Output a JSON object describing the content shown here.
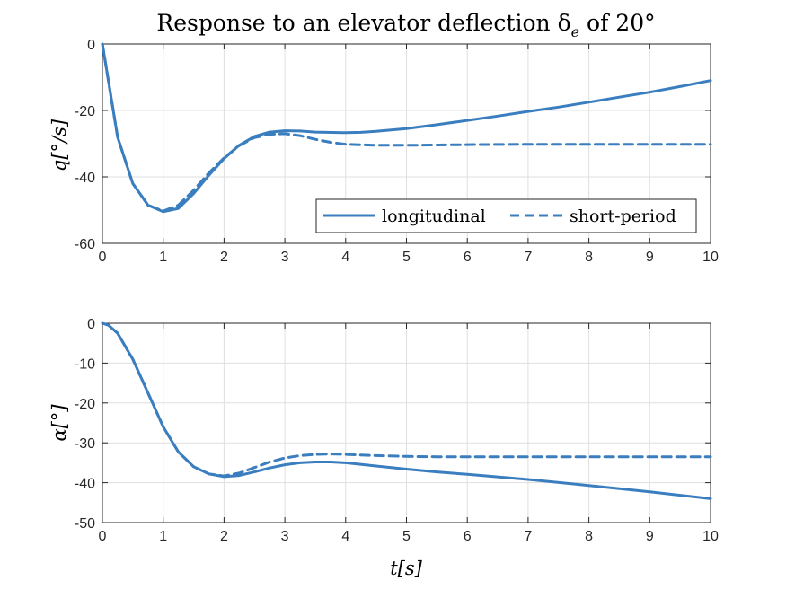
{
  "figure": {
    "title": "Response to an elevator deflection δ",
    "title_sub": "e",
    "title_tail": " of 20°"
  },
  "chart_data": [
    {
      "type": "line",
      "ylabel": "q[°/s]",
      "xlabel": "",
      "xlim": [
        0,
        10
      ],
      "ylim": [
        -60,
        0
      ],
      "xticks": [
        0,
        1,
        2,
        3,
        4,
        5,
        6,
        7,
        8,
        9,
        10
      ],
      "yticks": [
        0,
        -20,
        -40,
        -60
      ],
      "ytick_labels": [
        "0",
        "-20",
        "-40",
        "-60"
      ],
      "grid": true,
      "legend": "bottom-right",
      "color": "#3a7ebf",
      "series": [
        {
          "name": "longitudinal",
          "style": "solid",
          "x": [
            0,
            0.25,
            0.5,
            0.75,
            1.0,
            1.25,
            1.5,
            1.75,
            2.0,
            2.25,
            2.5,
            2.75,
            3.0,
            3.25,
            3.5,
            4.0,
            4.25,
            4.5,
            5.0,
            5.5,
            6.0,
            6.5,
            7.0,
            7.5,
            8.0,
            8.5,
            9.0,
            9.5,
            10.0
          ],
          "y": [
            0,
            -28,
            -42,
            -48.5,
            -50.5,
            -49.5,
            -45,
            -39.5,
            -34.5,
            -30.5,
            -27.8,
            -26.5,
            -26.1,
            -26.2,
            -26.5,
            -26.7,
            -26.6,
            -26.3,
            -25.5,
            -24.3,
            -23.0,
            -21.7,
            -20.3,
            -19.0,
            -17.5,
            -16.0,
            -14.5,
            -12.8,
            -11.0
          ]
        },
        {
          "name": "short-period",
          "style": "dashed",
          "x": [
            0,
            0.25,
            0.5,
            0.75,
            1.0,
            1.25,
            1.5,
            1.75,
            2.0,
            2.25,
            2.5,
            2.75,
            3.0,
            3.25,
            3.5,
            3.75,
            4.0,
            4.5,
            5.0,
            5.5,
            6.0,
            7.0,
            8.0,
            9.0,
            10.0
          ],
          "y": [
            0,
            -28,
            -42,
            -48.5,
            -50.3,
            -48.5,
            -44,
            -38.8,
            -34.3,
            -30.6,
            -28.2,
            -27.2,
            -27.0,
            -27.6,
            -28.7,
            -29.6,
            -30.2,
            -30.5,
            -30.5,
            -30.4,
            -30.3,
            -30.2,
            -30.2,
            -30.2,
            -30.2
          ]
        }
      ]
    },
    {
      "type": "line",
      "ylabel": "α[°]",
      "xlabel": "t[s]",
      "xlim": [
        0,
        10
      ],
      "ylim": [
        -50,
        0
      ],
      "xticks": [
        0,
        1,
        2,
        3,
        4,
        5,
        6,
        7,
        8,
        9,
        10
      ],
      "yticks": [
        0,
        -10,
        -20,
        -30,
        -40,
        -50
      ],
      "ytick_labels": [
        "0",
        "-10",
        "-20",
        "-30",
        "-40",
        "-50"
      ],
      "grid": true,
      "color": "#3a7ebf",
      "series": [
        {
          "name": "longitudinal",
          "style": "solid",
          "x": [
            0,
            0.1,
            0.25,
            0.5,
            0.75,
            1.0,
            1.25,
            1.5,
            1.75,
            2.0,
            2.25,
            2.5,
            2.75,
            3.0,
            3.25,
            3.5,
            3.75,
            4.0,
            4.5,
            5.0,
            5.5,
            6.0,
            7.0,
            8.0,
            9.0,
            10.0
          ],
          "y": [
            0,
            -0.5,
            -2.5,
            -9,
            -17.5,
            -26,
            -32.3,
            -36,
            -37.8,
            -38.5,
            -38.2,
            -37.3,
            -36.3,
            -35.5,
            -35.0,
            -34.8,
            -34.8,
            -35.0,
            -35.8,
            -36.6,
            -37.3,
            -37.9,
            -39.2,
            -40.7,
            -42.3,
            -44.0
          ]
        },
        {
          "name": "short-period",
          "style": "dashed",
          "x": [
            0,
            0.1,
            0.25,
            0.5,
            0.75,
            1.0,
            1.25,
            1.5,
            1.75,
            2.0,
            2.25,
            2.5,
            2.75,
            3.0,
            3.25,
            3.5,
            3.75,
            4.0,
            4.5,
            5.0,
            5.5,
            6.0,
            7.0,
            8.0,
            9.0,
            10.0
          ],
          "y": [
            0,
            -0.5,
            -2.5,
            -9,
            -17.5,
            -26,
            -32.3,
            -36,
            -37.8,
            -38.3,
            -37.6,
            -36.2,
            -34.8,
            -33.8,
            -33.2,
            -32.9,
            -32.8,
            -32.9,
            -33.2,
            -33.4,
            -33.5,
            -33.5,
            -33.5,
            -33.5,
            -33.5,
            -33.5
          ]
        }
      ]
    }
  ]
}
